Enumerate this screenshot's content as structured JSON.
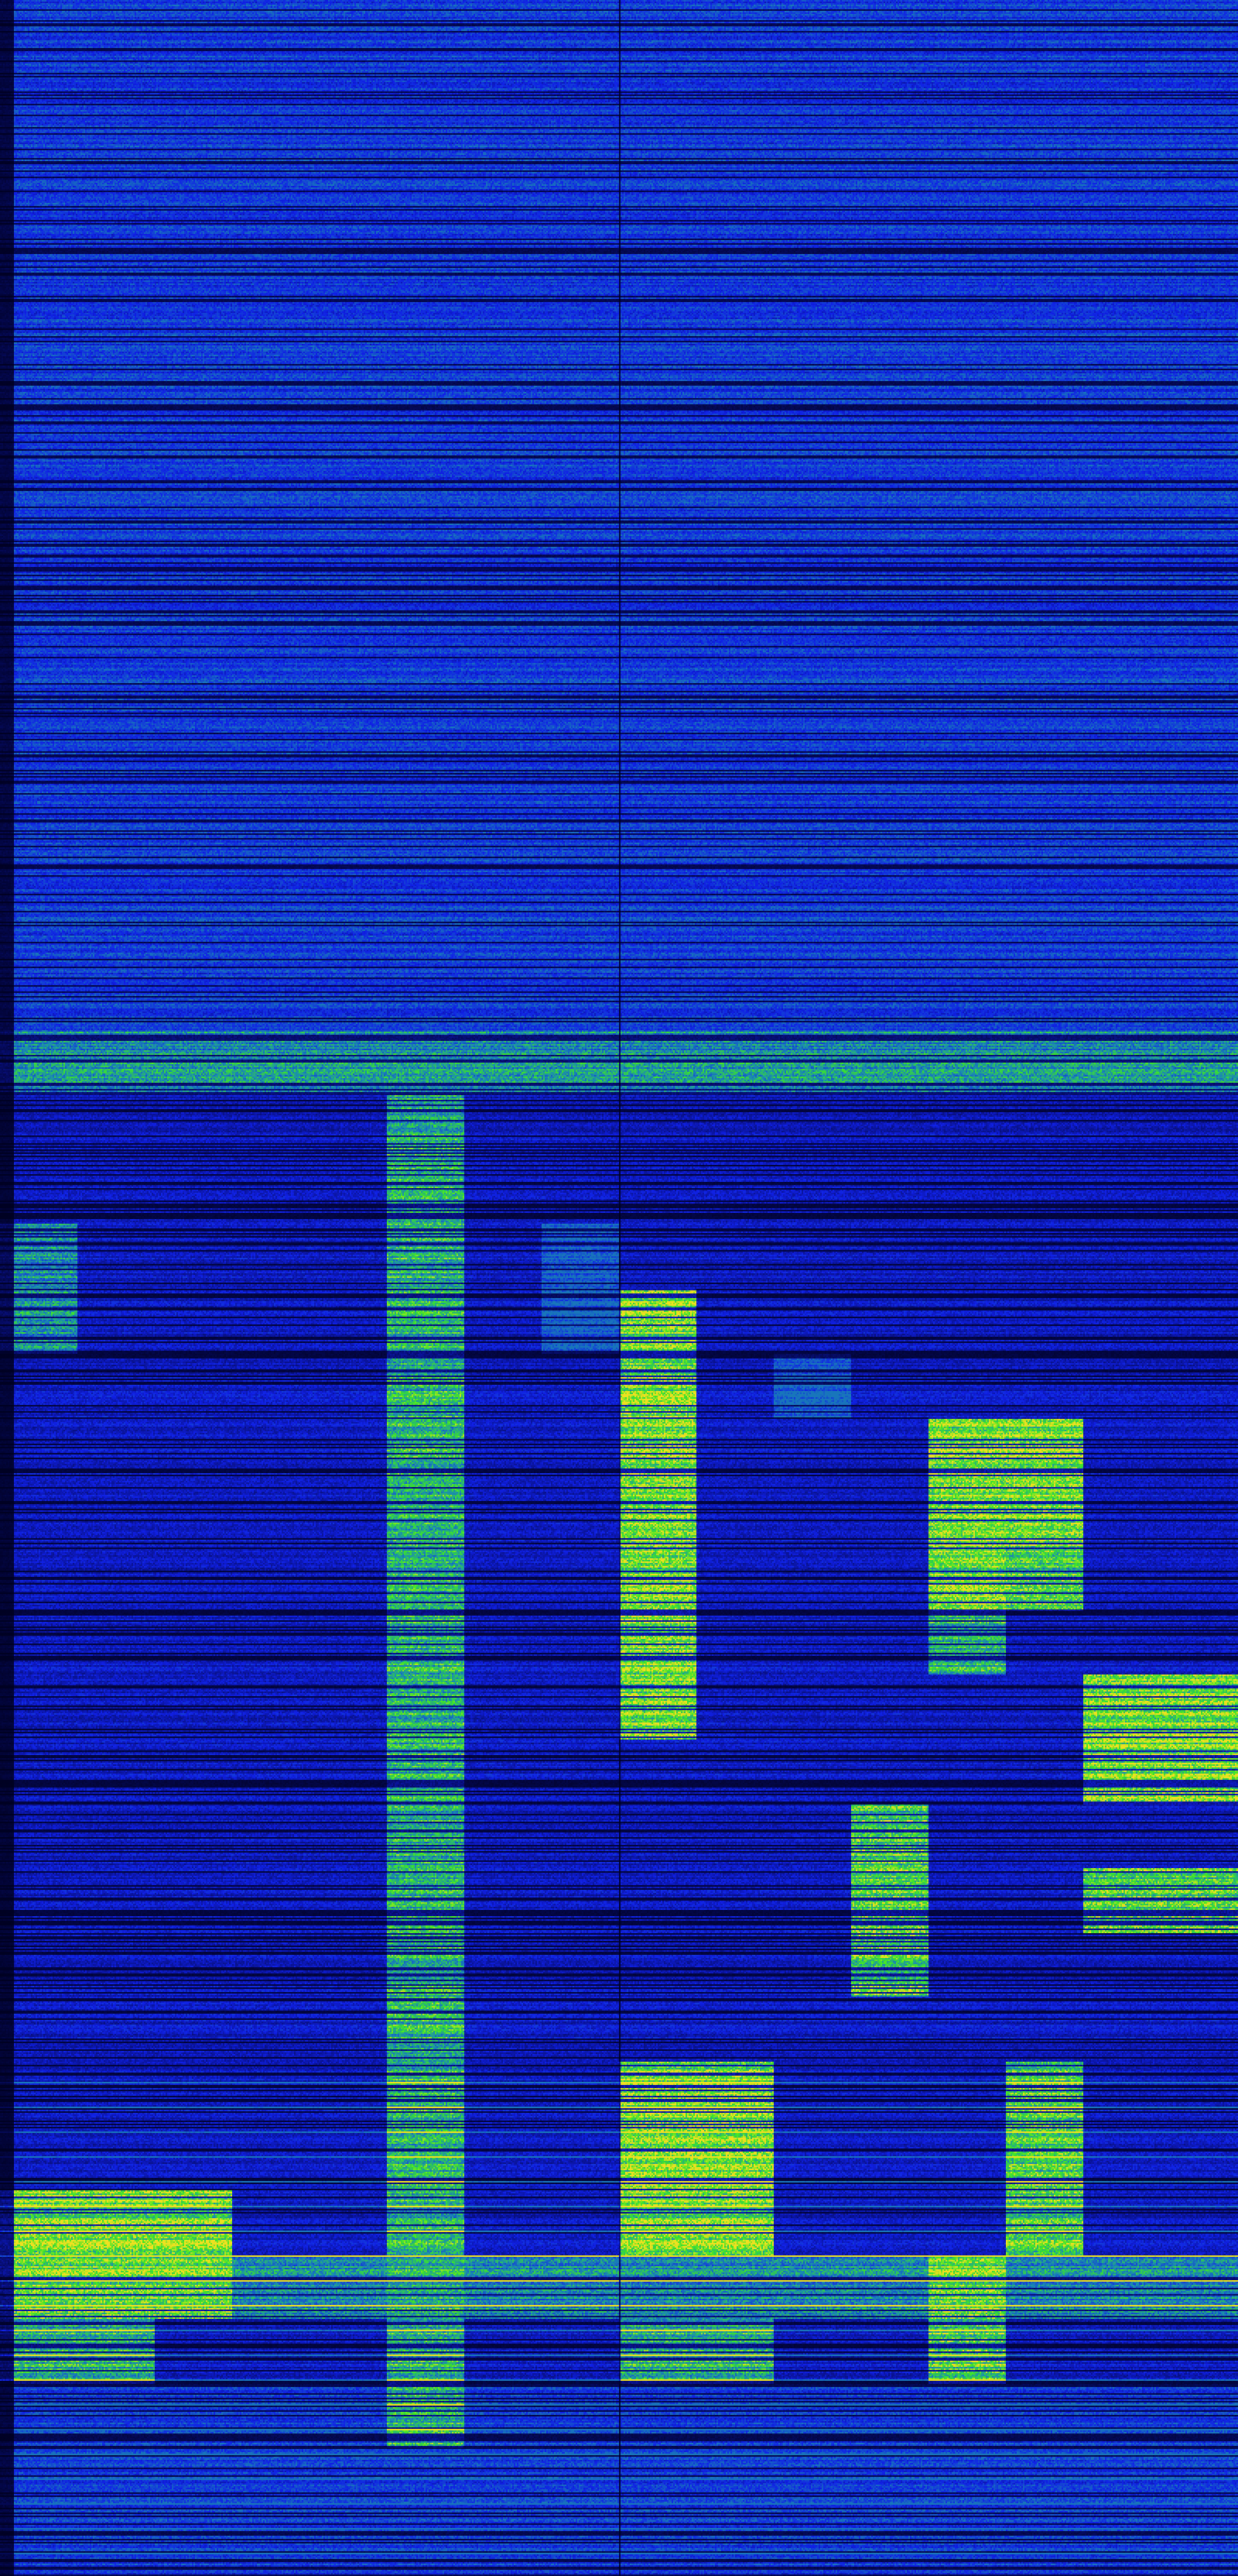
{
  "chart_data": {
    "type": "heatmap",
    "title": "",
    "xlabel": "",
    "ylabel": "",
    "colormap": [
      "#00001e",
      "#1020e6",
      "#1a8cb0",
      "#3ce628",
      "#f0e020"
    ],
    "intensity_scale": [
      0,
      9
    ],
    "grid": false,
    "legend": "none",
    "matrix_columns": 16,
    "matrix_rows": [
      "3333333333333333",
      "3333333333333333",
      "3333333333333333",
      "3333333333333333",
      "3333333333333333",
      "3333333333333333",
      "3333333333333333",
      "3333333333333333",
      "3333333333333333",
      "3333333333333333",
      "3333333333333333",
      "3333333333333333",
      "3333333333333333",
      "3333333333333333",
      "3333333333333333",
      "3333333333333333",
      "5555555555555555",
      "2222262222222222",
      "2222262222222222",
      "5222262422222222",
      "5222262482222222",
      "2222262282422222",
      "2222262282228822",
      "2222262282228822",
      "2222262282228722",
      "2222262282226222",
      "2222262282222288",
      "2222262222222288",
      "2222262222272222",
      "2222262222272277",
      "2222262222272222",
      "2222262222222222",
      "2222262288222722",
      "2222262288222722",
      "8882262288222722",
      "8885565555558555",
      "6622262266227222",
      "3333363333333333",
      "3333333333333333",
      "3333333333333333"
    ]
  }
}
